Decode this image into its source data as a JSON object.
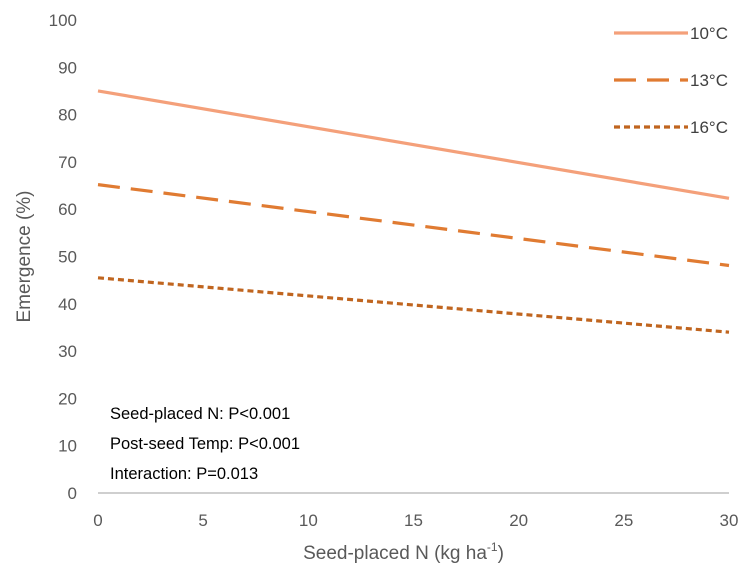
{
  "chart_data": {
    "type": "line",
    "xlabel": "Seed-placed N (kg ha",
    "xlabel_sup": "-1",
    "xlabel_close": ")",
    "ylabel": "Emergence (%)",
    "xlim": [
      0,
      30
    ],
    "ylim": [
      0,
      100
    ],
    "xticks": [
      0,
      5,
      10,
      15,
      20,
      25,
      30
    ],
    "yticks": [
      0,
      10,
      20,
      30,
      40,
      50,
      60,
      70,
      80,
      90,
      100
    ],
    "grid": false,
    "legend_position": "top-right",
    "series": [
      {
        "name": "10°C",
        "x": [
          0,
          30
        ],
        "y": [
          85,
          62.3
        ],
        "color": "#F4A07A",
        "dash": "solid"
      },
      {
        "name": "13°C",
        "x": [
          0,
          30
        ],
        "y": [
          65.2,
          48.1
        ],
        "color": "#E07B32",
        "dash": "long-dash"
      },
      {
        "name": "16°C",
        "x": [
          0,
          30
        ],
        "y": [
          45.5,
          34
        ],
        "color": "#C0651F",
        "dash": "dot"
      }
    ],
    "annotations": [
      "Seed-placed N: P<0.001",
      "Post-seed Temp: P<0.001",
      "Interaction: P=0.013"
    ]
  }
}
